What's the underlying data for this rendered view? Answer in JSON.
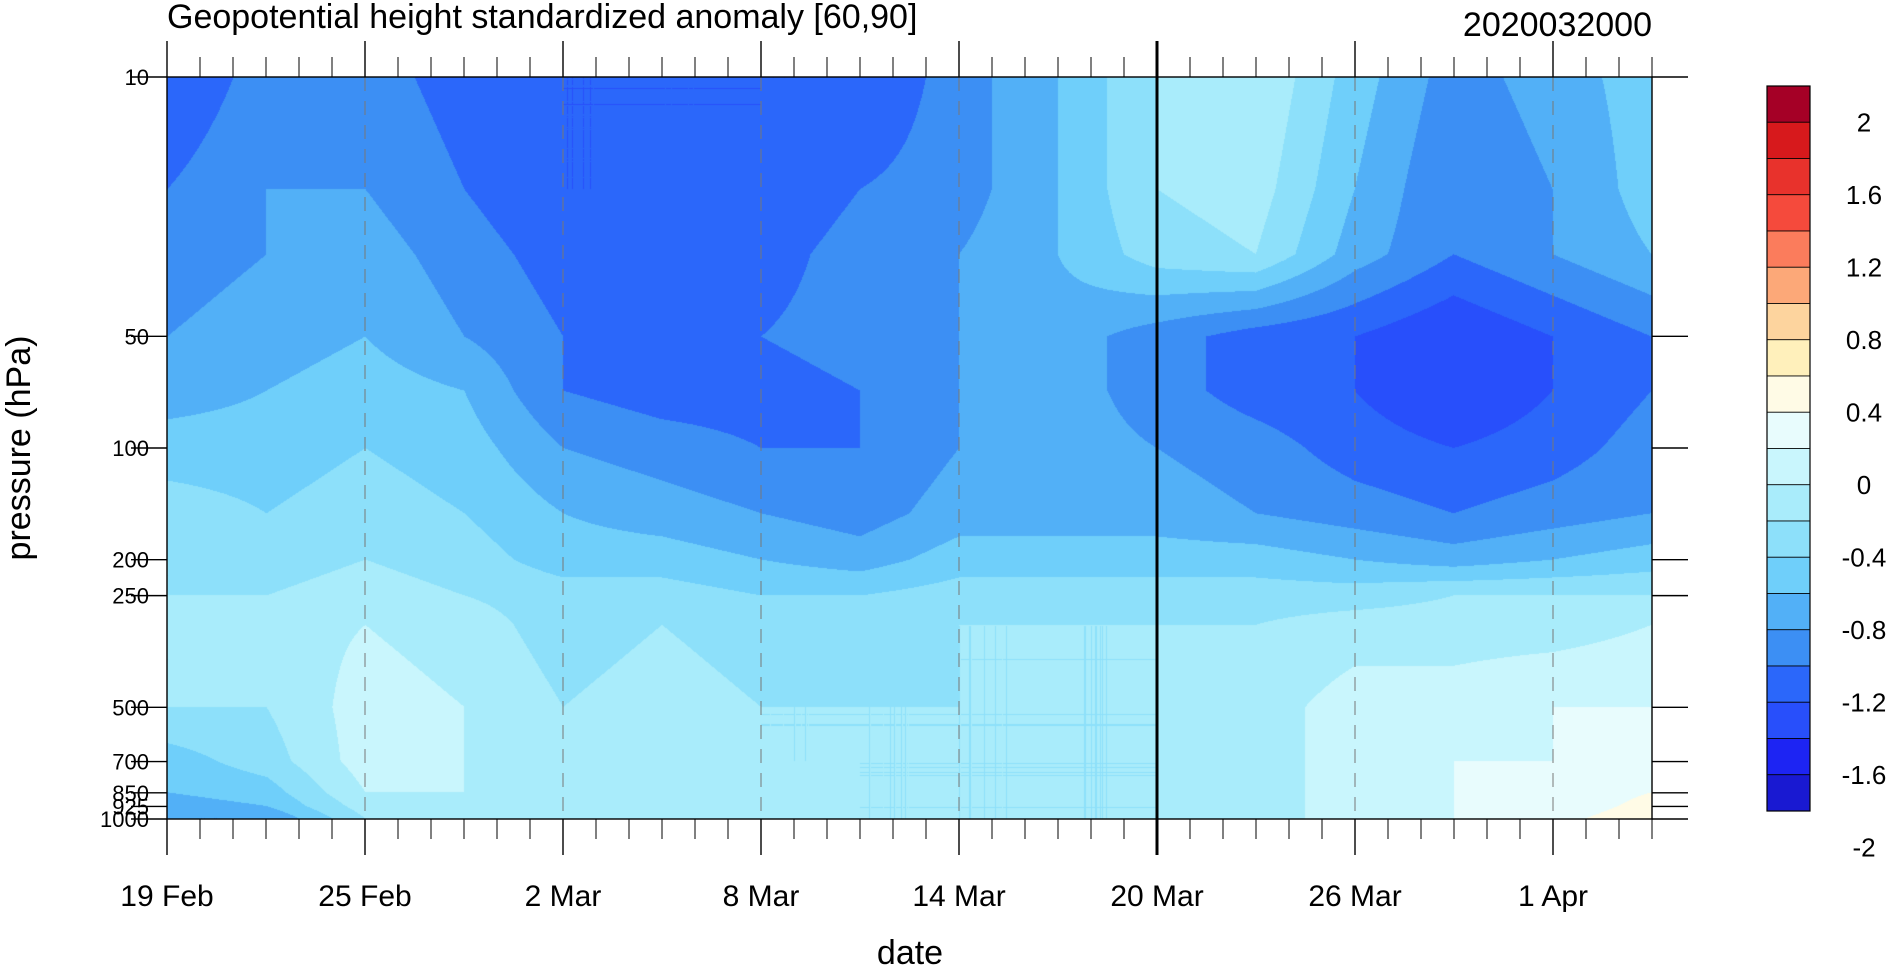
{
  "chart_data": {
    "type": "heatmap",
    "title": "Geopotential height standardized anomaly [60,90]",
    "date_stamp": "2020032000",
    "xlabel": "date",
    "ylabel": "pressure (hPa)",
    "x_tick_labels": [
      "19 Feb",
      "25 Feb",
      "2 Mar",
      "8 Mar",
      "14 Mar",
      "20 Mar",
      "26 Mar",
      "1 Apr"
    ],
    "x_tick_days": [
      0,
      6,
      12,
      18,
      24,
      30,
      36,
      42
    ],
    "x_range_days": [
      0,
      45
    ],
    "x_start_date": "2020-02-19",
    "marker_day": 30,
    "y_scale": "log",
    "y_tick_labels": [
      "10",
      "50",
      "100",
      "200",
      "250",
      "500",
      "700",
      "850",
      "925",
      "1000"
    ],
    "y_range": [
      10,
      1000
    ],
    "contour_levels": [
      -2.2,
      -2.0,
      -1.8,
      -1.6,
      -1.4,
      -1.2,
      -1.0,
      -0.8,
      -0.6,
      -0.4,
      -0.2,
      0.0,
      0.2,
      0.4,
      0.6,
      0.8,
      1.0,
      1.2,
      1.4,
      1.6,
      1.8,
      2.0
    ],
    "colorbar_labels": [
      "2",
      "1.6",
      "1.2",
      "0.8",
      "0.4",
      "0",
      "-0.4",
      "-0.8",
      "-1.2",
      "-1.6",
      "-2"
    ],
    "colorbar_colors": [
      "#a50026",
      "#d7191c",
      "#e8322c",
      "#f54a3c",
      "#fb7c5c",
      "#fca878",
      "#fdd49e",
      "#fff0bb",
      "#fffbe6",
      "#e8fcfd",
      "#c9f6fd",
      "#a9ecfb",
      "#8de0fa",
      "#6fcffa",
      "#52b0f7",
      "#3c8ff4",
      "#2b67fa",
      "#284ffb",
      "#1d24f3",
      "#1919d2"
    ],
    "grid": {
      "levels": [
        10,
        20,
        30,
        50,
        70,
        100,
        150,
        200,
        250,
        300,
        500,
        700,
        850,
        925,
        1000
      ],
      "days": [
        0,
        3,
        6,
        9,
        12,
        15,
        18,
        21,
        24,
        27,
        30,
        33,
        36,
        39,
        42,
        45
      ],
      "values": [
        [
          -1.6,
          -1.3,
          -1.3,
          -1.5,
          -1.6,
          -1.6,
          -1.6,
          -1.6,
          -1.3,
          -1.0,
          -0.6,
          -0.4,
          -0.9,
          -1.3,
          -1.1,
          -0.9
        ],
        [
          -1.4,
          -1.2,
          -1.2,
          -1.4,
          -1.6,
          -1.6,
          -1.6,
          -1.4,
          -1.3,
          -1.0,
          -0.6,
          -0.5,
          -1.0,
          -1.4,
          -1.2,
          -0.9
        ],
        [
          -1.3,
          -1.2,
          -1.1,
          -1.3,
          -1.5,
          -1.6,
          -1.5,
          -1.3,
          -1.2,
          -1.0,
          -0.7,
          -0.6,
          -1.1,
          -1.4,
          -1.2,
          -1.0
        ],
        [
          -1.2,
          -1.1,
          -1.0,
          -1.2,
          -1.4,
          -1.5,
          -1.4,
          -1.3,
          -1.2,
          -1.1,
          -1.3,
          -1.5,
          -1.6,
          -1.8,
          -1.6,
          -1.4
        ],
        [
          -1.1,
          -1.0,
          -0.9,
          -1.0,
          -1.4,
          -1.5,
          -1.5,
          -1.4,
          -1.2,
          -1.1,
          -1.3,
          -1.5,
          -1.6,
          -1.8,
          -1.6,
          -1.4
        ],
        [
          -0.9,
          -0.9,
          -0.8,
          -0.9,
          -1.2,
          -1.3,
          -1.4,
          -1.4,
          -1.2,
          -1.1,
          -1.2,
          -1.3,
          -1.5,
          -1.6,
          -1.5,
          -1.3
        ],
        [
          -0.7,
          -0.8,
          -0.7,
          -0.8,
          -1.0,
          -1.1,
          -1.2,
          -1.3,
          -1.1,
          -1.1,
          -1.1,
          -1.2,
          -1.3,
          -1.4,
          -1.3,
          -1.2
        ],
        [
          -0.6,
          -0.7,
          -0.6,
          -0.7,
          -0.9,
          -0.9,
          -1.0,
          -1.1,
          -0.9,
          -0.9,
          -0.9,
          -0.9,
          -1.0,
          -1.1,
          -1.0,
          -0.9
        ],
        [
          -0.6,
          -0.6,
          -0.5,
          -0.6,
          -0.7,
          -0.7,
          -0.8,
          -0.8,
          -0.7,
          -0.7,
          -0.7,
          -0.7,
          -0.7,
          -0.6,
          -0.6,
          -0.6
        ],
        [
          -0.6,
          -0.5,
          -0.4,
          -0.5,
          -0.7,
          -0.6,
          -0.7,
          -0.7,
          -0.6,
          -0.6,
          -0.6,
          -0.6,
          -0.5,
          -0.5,
          -0.5,
          -0.4
        ],
        [
          -0.6,
          -0.6,
          -0.3,
          -0.4,
          -0.6,
          -0.5,
          -0.6,
          -0.6,
          -0.6,
          -0.6,
          -0.6,
          -0.5,
          -0.3,
          -0.3,
          -0.2,
          -0.2
        ],
        [
          -0.9,
          -0.7,
          -0.3,
          -0.4,
          -0.6,
          -0.5,
          -0.6,
          -0.6,
          -0.6,
          -0.6,
          -0.6,
          -0.5,
          -0.3,
          -0.2,
          -0.2,
          -0.1
        ],
        [
          -1.0,
          -0.9,
          -0.4,
          -0.4,
          -0.5,
          -0.4,
          -0.5,
          -0.6,
          -0.6,
          -0.6,
          -0.6,
          -0.5,
          -0.3,
          -0.2,
          -0.1,
          0.0
        ],
        [
          -1.1,
          -1.0,
          -0.5,
          -0.4,
          -0.5,
          -0.4,
          -0.5,
          -0.6,
          -0.6,
          -0.6,
          -0.6,
          -0.5,
          -0.3,
          -0.2,
          -0.1,
          0.05
        ],
        [
          -1.2,
          -1.2,
          -0.6,
          -0.4,
          -0.5,
          -0.4,
          -0.5,
          -0.6,
          -0.6,
          -0.6,
          -0.6,
          -0.5,
          -0.3,
          -0.2,
          -0.05,
          0.1
        ]
      ]
    }
  }
}
